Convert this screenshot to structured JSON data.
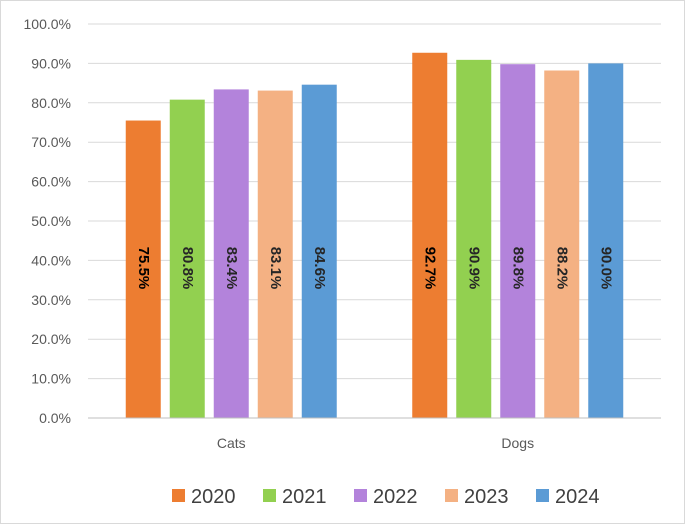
{
  "chart_data": {
    "type": "bar",
    "categories": [
      "Cats",
      "Dogs"
    ],
    "series": [
      {
        "name": "2020",
        "values": [
          75.5,
          92.7
        ],
        "labels": [
          "75.5%",
          "92.7%"
        ],
        "color": "#ed7d31"
      },
      {
        "name": "2021",
        "values": [
          80.8,
          90.9
        ],
        "labels": [
          "80.8%",
          "90.9%"
        ],
        "color": "#92d050"
      },
      {
        "name": "2022",
        "values": [
          83.4,
          89.8
        ],
        "labels": [
          "83.4%",
          "89.8%"
        ],
        "color": "#b383db"
      },
      {
        "name": "2023",
        "values": [
          83.1,
          88.2
        ],
        "labels": [
          "83.1%",
          "88.2%"
        ],
        "color": "#f4b183"
      },
      {
        "name": "2024",
        "values": [
          84.6,
          90.0
        ],
        "labels": [
          "84.6%",
          "90.0%"
        ],
        "color": "#5b9bd5"
      }
    ],
    "y_ticks": [
      "0.0%",
      "10.0%",
      "20.0%",
      "30.0%",
      "40.0%",
      "50.0%",
      "60.0%",
      "70.0%",
      "80.0%",
      "90.0%",
      "100.0%"
    ],
    "ylim": [
      0,
      100
    ],
    "grid": true,
    "legend_position": "bottom",
    "title": "",
    "xlabel": "",
    "ylabel": ""
  }
}
